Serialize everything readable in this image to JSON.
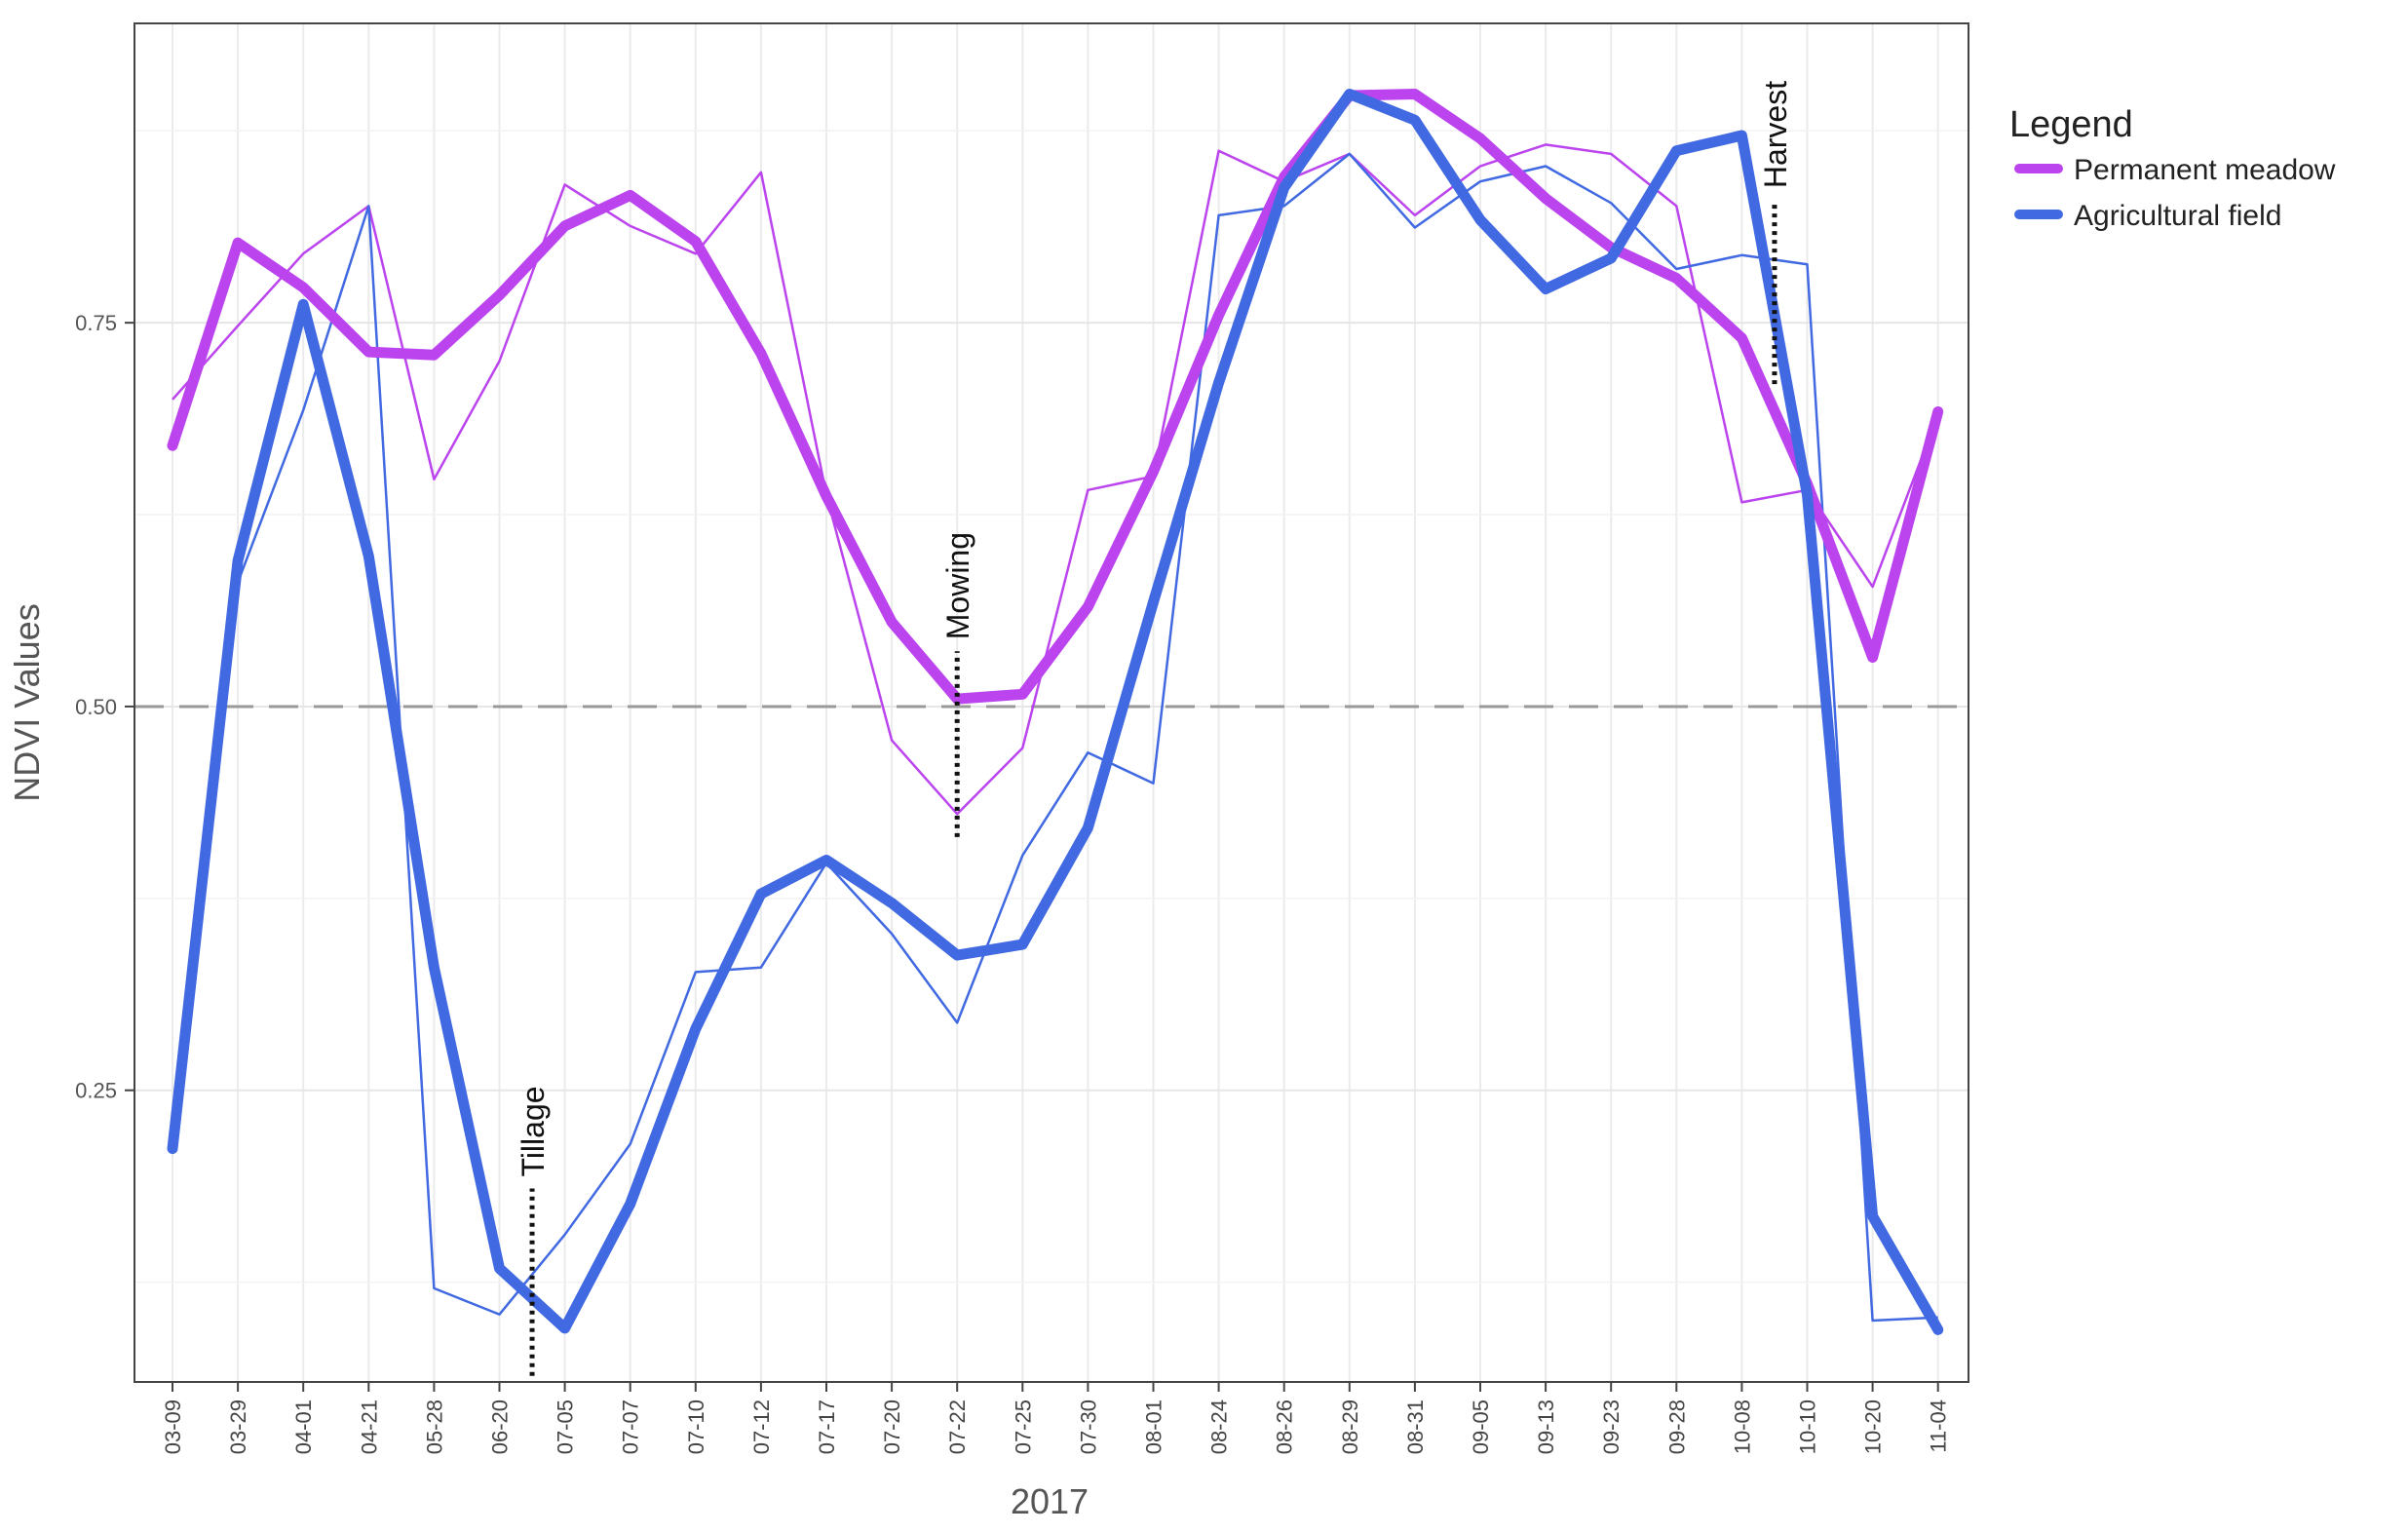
{
  "chart_data": {
    "type": "line",
    "xlabel": "2017",
    "ylabel": "NDVI Values",
    "ylim": [
      0.06,
      0.945
    ],
    "y_ticks": [
      0.25,
      0.5,
      0.75
    ],
    "y_tick_labels": [
      "0.25",
      "0.50",
      "0.75"
    ],
    "reference_line": {
      "y": 0.5,
      "style": "dashed",
      "color": "#999999"
    },
    "grid": true,
    "legend": {
      "title": "Legend",
      "placement": "right-top",
      "entries": [
        "Permanent meadow",
        "Agricultural field"
      ]
    },
    "categories": [
      "03-09",
      "03-29",
      "04-01",
      "04-21",
      "05-28",
      "06-20",
      "07-05",
      "07-07",
      "07-10",
      "07-12",
      "07-17",
      "07-20",
      "07-22",
      "07-25",
      "07-30",
      "08-01",
      "08-24",
      "08-26",
      "08-29",
      "08-31",
      "09-05",
      "09-13",
      "09-23",
      "09-28",
      "10-08",
      "10-10",
      "10-20",
      "11-04"
    ],
    "series": [
      {
        "name": "Permanent meadow",
        "color": "#bb44ee",
        "raw": [
          0.7,
          0.748,
          0.795,
          0.826,
          0.648,
          0.725,
          0.84,
          0.813,
          0.795,
          0.848,
          0.638,
          0.478,
          0.43,
          0.473,
          0.641,
          0.65,
          0.862,
          0.842,
          0.86,
          0.82,
          0.852,
          0.866,
          0.86,
          0.826,
          0.633,
          0.641,
          0.578,
          0.69
        ],
        "smoothed": [
          0.67,
          0.802,
          0.773,
          0.731,
          0.729,
          0.768,
          0.813,
          0.833,
          0.803,
          0.73,
          0.637,
          0.555,
          0.505,
          0.508,
          0.565,
          0.653,
          0.755,
          0.845,
          0.898,
          0.899,
          0.87,
          0.831,
          0.799,
          0.779,
          0.74,
          0.645,
          0.532,
          0.692
        ]
      },
      {
        "name": "Agricultural field",
        "color": "#4169e1",
        "raw": [
          0.212,
          0.581,
          0.693,
          0.826,
          0.121,
          0.104,
          0.156,
          0.215,
          0.327,
          0.33,
          0.398,
          0.352,
          0.294,
          0.403,
          0.47,
          0.45,
          0.82,
          0.826,
          0.86,
          0.812,
          0.842,
          0.852,
          0.828,
          0.785,
          0.794,
          0.788,
          0.1,
          0.102
        ],
        "smoothed": [
          0.212,
          0.595,
          0.762,
          0.598,
          0.33,
          0.134,
          0.095,
          0.176,
          0.29,
          0.378,
          0.4,
          0.372,
          0.338,
          0.345,
          0.421,
          0.568,
          0.711,
          0.838,
          0.899,
          0.882,
          0.817,
          0.772,
          0.792,
          0.862,
          0.872,
          0.638,
          0.168,
          0.094
        ]
      }
    ],
    "annotations": [
      {
        "text": "Tillage",
        "x_between": [
          "06-20",
          "07-05"
        ],
        "y_from": 0.064,
        "y_to": 0.186
      },
      {
        "text": "Mowing",
        "x": "07-22",
        "y_from": 0.415,
        "y_to": 0.536
      },
      {
        "text": "Harvest",
        "x_between": [
          "10-08",
          "10-10"
        ],
        "y_from": 0.71,
        "y_to": 0.83
      }
    ]
  }
}
